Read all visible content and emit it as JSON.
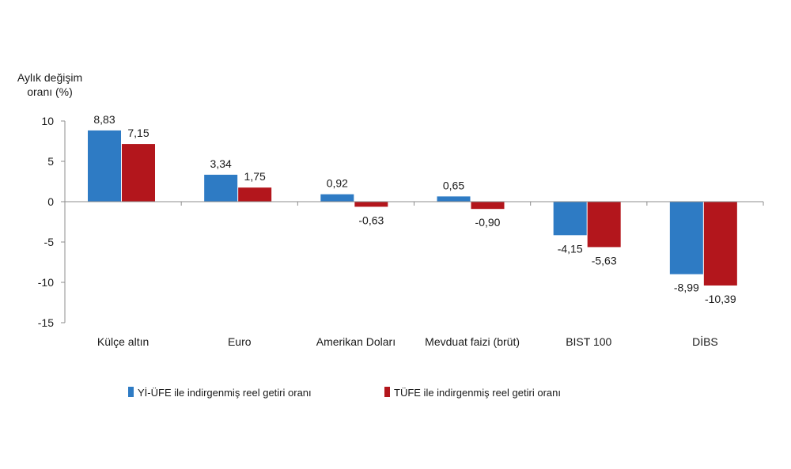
{
  "chart_data": {
    "type": "bar",
    "title": "",
    "ylabel_lines": [
      "Aylık değişim",
      "oranı (%)"
    ],
    "xlabel": "",
    "ylim": [
      -15,
      10
    ],
    "yticks": [
      10,
      5,
      0,
      -5,
      -10,
      -15
    ],
    "grid": false,
    "legend_position": "bottom",
    "categories": [
      "Külçe altın",
      "Euro",
      "Amerikan Doları",
      "Mevduat faizi (brüt)",
      "BIST 100",
      "DİBS"
    ],
    "series": [
      {
        "name": "Yİ-ÜFE ile indirgenmiş reel getiri oranı",
        "color": "#2e7bc4",
        "values": [
          8.83,
          3.34,
          0.92,
          0.65,
          -4.15,
          -8.99
        ],
        "labels": [
          "8,83",
          "3,34",
          "0,92",
          "0,65",
          "-4,15",
          "-8,99"
        ]
      },
      {
        "name": "TÜFE ile indirgenmiş reel getiri oranı",
        "color": "#b3161c",
        "values": [
          7.15,
          1.75,
          -0.63,
          -0.9,
          -5.63,
          -10.39
        ],
        "labels": [
          "7,15",
          "1,75",
          "-0,63",
          "-0,90",
          "-5,63",
          "-10,39"
        ]
      }
    ]
  }
}
